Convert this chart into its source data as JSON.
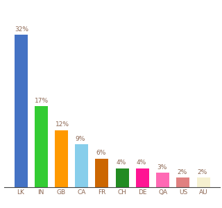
{
  "categories": [
    "LK",
    "IN",
    "GB",
    "CA",
    "FR",
    "CH",
    "DE",
    "QA",
    "US",
    "AU"
  ],
  "values": [
    32,
    17,
    12,
    9,
    6,
    4,
    4,
    3,
    2,
    2
  ],
  "bar_colors": [
    "#4472c4",
    "#33cc33",
    "#ff9900",
    "#87ceeb",
    "#cc6600",
    "#228B22",
    "#ff1493",
    "#ff69b4",
    "#e08080",
    "#f5f0d0"
  ],
  "background_color": "#ffffff",
  "label_color": "#8B6550",
  "label_fontsize": 6.5,
  "tick_fontsize": 6.5,
  "ylim": [
    0,
    38
  ],
  "bar_width": 0.65
}
